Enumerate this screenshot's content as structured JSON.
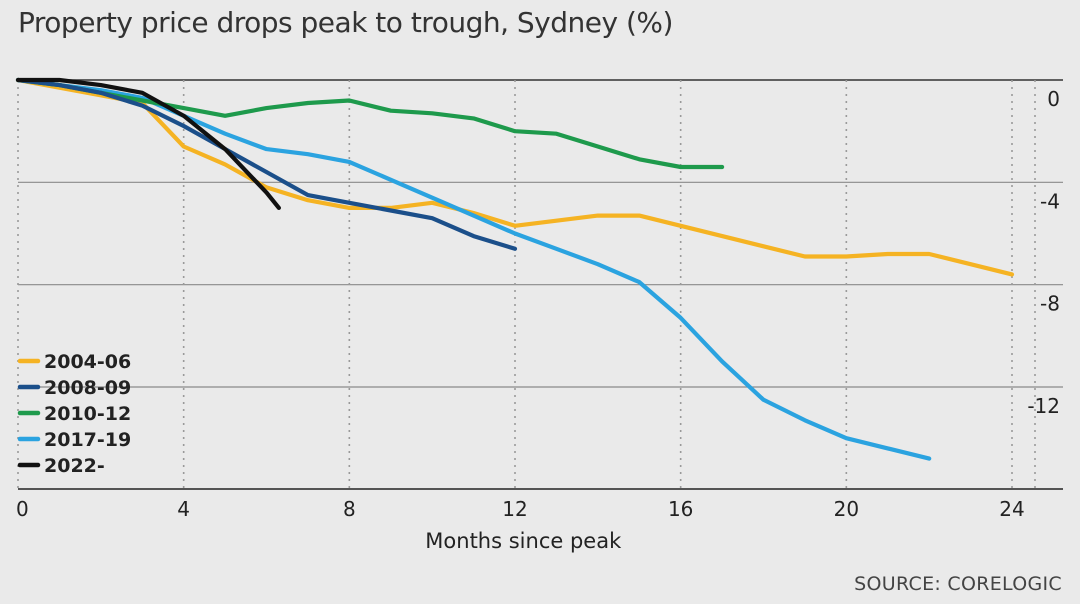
{
  "chart_data": {
    "type": "line",
    "title": "Property price drops peak to trough, Sydney (%)",
    "xlabel": "Months since peak",
    "ylabel": "",
    "source": "SOURCE: CORELOGIC",
    "xlim": [
      0,
      25
    ],
    "ylim": [
      -15.4,
      0.6
    ],
    "x_ticks": [
      0,
      4,
      8,
      12,
      16,
      20,
      24
    ],
    "x_tick_labels": [
      "0",
      "4",
      "8",
      "12",
      "16",
      "20",
      "24"
    ],
    "y_ticks": [
      0,
      -4,
      -8,
      -12
    ],
    "y_tick_labels": [
      "0",
      "-4",
      "-8",
      "-12"
    ],
    "vertical_gridlines": "dotted",
    "horizontal_gridlines": "solid",
    "legend_position": "bottom-left",
    "series": [
      {
        "name": "2004-06",
        "color": "#f5b323",
        "points": [
          [
            0,
            0
          ],
          [
            1,
            -0.3
          ],
          [
            2,
            -0.6
          ],
          [
            3,
            -0.9
          ],
          [
            4,
            -2.6
          ],
          [
            5,
            -3.3
          ],
          [
            6,
            -4.2
          ],
          [
            7,
            -4.7
          ],
          [
            8,
            -5.0
          ],
          [
            9,
            -5.0
          ],
          [
            10,
            -4.8
          ],
          [
            11,
            -5.2
          ],
          [
            12,
            -5.7
          ],
          [
            13,
            -5.5
          ],
          [
            14,
            -5.3
          ],
          [
            15,
            -5.3
          ],
          [
            16,
            -5.7
          ],
          [
            17,
            -6.1
          ],
          [
            18,
            -6.5
          ],
          [
            19,
            -6.9
          ],
          [
            20,
            -6.9
          ],
          [
            21,
            -6.8
          ],
          [
            22,
            -6.8
          ],
          [
            23,
            -7.2
          ],
          [
            24,
            -7.6
          ]
        ]
      },
      {
        "name": "2008-09",
        "color": "#1b4f8a",
        "points": [
          [
            0,
            0
          ],
          [
            1,
            -0.2
          ],
          [
            2,
            -0.5
          ],
          [
            3,
            -1.0
          ],
          [
            4,
            -1.8
          ],
          [
            5,
            -2.7
          ],
          [
            6,
            -3.6
          ],
          [
            7,
            -4.5
          ],
          [
            8,
            -4.8
          ],
          [
            9,
            -5.1
          ],
          [
            10,
            -5.4
          ],
          [
            11,
            -6.1
          ],
          [
            12,
            -6.6
          ]
        ]
      },
      {
        "name": "2010-12",
        "color": "#1e9a4c",
        "points": [
          [
            0,
            0
          ],
          [
            1,
            -0.2
          ],
          [
            2,
            -0.5
          ],
          [
            3,
            -0.8
          ],
          [
            4,
            -1.1
          ],
          [
            5,
            -1.4
          ],
          [
            6,
            -1.1
          ],
          [
            7,
            -0.9
          ],
          [
            8,
            -0.8
          ],
          [
            9,
            -1.2
          ],
          [
            10,
            -1.3
          ],
          [
            11,
            -1.5
          ],
          [
            12,
            -2.0
          ],
          [
            13,
            -2.1
          ],
          [
            14,
            -2.6
          ],
          [
            15,
            -3.1
          ],
          [
            16,
            -3.4
          ],
          [
            17,
            -3.4
          ]
        ]
      },
      {
        "name": "2017-19",
        "color": "#2ba3e0",
        "points": [
          [
            0,
            0
          ],
          [
            1,
            -0.2
          ],
          [
            2,
            -0.4
          ],
          [
            3,
            -0.7
          ],
          [
            4,
            -1.4
          ],
          [
            5,
            -2.1
          ],
          [
            6,
            -2.7
          ],
          [
            7,
            -2.9
          ],
          [
            8,
            -3.2
          ],
          [
            9,
            -3.9
          ],
          [
            10,
            -4.6
          ],
          [
            11,
            -5.3
          ],
          [
            12,
            -6.0
          ],
          [
            13,
            -6.6
          ],
          [
            14,
            -7.2
          ],
          [
            15,
            -7.9
          ],
          [
            16,
            -9.3
          ],
          [
            17,
            -11.0
          ],
          [
            18,
            -12.5
          ],
          [
            19,
            -13.3
          ],
          [
            20,
            -14.0
          ],
          [
            21,
            -14.4
          ],
          [
            22,
            -14.8
          ]
        ]
      },
      {
        "name": "2022-",
        "color": "#111111",
        "points": [
          [
            0,
            0
          ],
          [
            1,
            0
          ],
          [
            2,
            -0.2
          ],
          [
            3,
            -0.5
          ],
          [
            4,
            -1.4
          ],
          [
            5,
            -2.7
          ],
          [
            6,
            -4.4
          ],
          [
            6.3,
            -5.0
          ]
        ]
      }
    ]
  }
}
